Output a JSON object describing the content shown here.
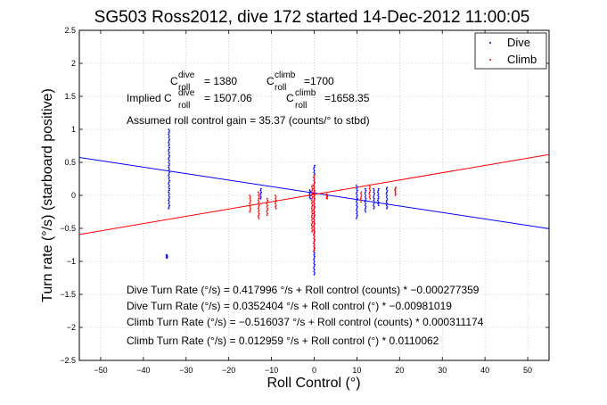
{
  "chart_data": {
    "type": "scatter",
    "title": "SG503 Ross2012, dive 172 started 14-Dec-2012 11:00:05",
    "xlabel": "Roll Control (°)",
    "ylabel": "Turn rate (°/s) (starboard positive)",
    "xlim": [
      -55,
      55
    ],
    "ylim": [
      -2.5,
      2.5
    ],
    "xticks": [
      "−50",
      "−40",
      "−30",
      "−20",
      "−10",
      "0",
      "10",
      "20",
      "30",
      "40",
      "50"
    ],
    "xtick_values": [
      -50,
      -40,
      -30,
      -20,
      -10,
      0,
      10,
      20,
      30,
      40,
      50
    ],
    "yticks": [
      "2.5",
      "2",
      "1.5",
      "1",
      "0.5",
      "0",
      "−0.5",
      "−1",
      "−1.5",
      "−2",
      "−2.5"
    ],
    "ytick_values": [
      2.5,
      2,
      1.5,
      1,
      0.5,
      0,
      -0.5,
      -1,
      -1.5,
      -2,
      -2.5
    ],
    "grid": true,
    "legend_position": "top-right",
    "series": [
      {
        "name": "Dive",
        "color": "#0000ff",
        "marker": "dot",
        "clusters": [
          {
            "x": -34,
            "y_min": -0.2,
            "y_max": 1.0
          },
          {
            "x": -34.5,
            "y_min": -0.95,
            "y_max": -0.9
          },
          {
            "x": -12.5,
            "y_min": -0.05,
            "y_max": 0.1
          },
          {
            "x": -1,
            "y_min": -0.05,
            "y_max": 0.08
          },
          {
            "x": 0,
            "y_min": -1.2,
            "y_max": 0.45
          },
          {
            "x": 10,
            "y_min": -0.35,
            "y_max": 0.15
          },
          {
            "x": 12,
            "y_min": -0.25,
            "y_max": 0.1
          },
          {
            "x": 14,
            "y_min": -0.2,
            "y_max": 0.1
          },
          {
            "x": 15,
            "y_min": -0.15,
            "y_max": 0.1
          },
          {
            "x": 17,
            "y_min": -0.2,
            "y_max": 0.12
          }
        ]
      },
      {
        "name": "Climb",
        "color": "#ff0000",
        "marker": "dot",
        "clusters": [
          {
            "x": -15,
            "y_min": -0.25,
            "y_max": 0.0
          },
          {
            "x": -13,
            "y_min": -0.35,
            "y_max": 0.05
          },
          {
            "x": -11,
            "y_min": -0.3,
            "y_max": -0.05
          },
          {
            "x": -9,
            "y_min": -0.2,
            "y_max": 0.0
          },
          {
            "x": -0.5,
            "y_min": -0.55,
            "y_max": 0.15
          },
          {
            "x": 0,
            "y_min": -0.85,
            "y_max": 0.3
          },
          {
            "x": 3,
            "y_min": -0.05,
            "y_max": 0.02
          },
          {
            "x": 11,
            "y_min": -0.1,
            "y_max": 0.05
          },
          {
            "x": 13,
            "y_min": -0.05,
            "y_max": 0.15
          },
          {
            "x": 19,
            "y_min": 0.0,
            "y_max": 0.12
          }
        ]
      }
    ],
    "fit_lines": [
      {
        "series": "Dive",
        "color": "#0000ff",
        "slope": -0.00981019,
        "intercept": 0.0352404
      },
      {
        "series": "Climb",
        "color": "#ff0000",
        "slope": 0.0110062,
        "intercept": 0.012959
      }
    ],
    "annotations": {
      "c_dive_prefix": "C",
      "c_dive_sup": "dive",
      "c_dive_sub": "roll",
      "c_dive_value": "= 1380",
      "c_climb_prefix": "C",
      "c_climb_sup": "climb",
      "c_climb_sub": "roll",
      "c_climb_value": "=1700",
      "implied_label": "Implied C",
      "implied_dive_sup": "dive",
      "implied_dive_sub": "roll",
      "implied_dive_value": "= 1507.06",
      "implied_climb_prefix": "C",
      "implied_climb_sup": "climb",
      "implied_climb_sub": "roll",
      "implied_climb_value": "=1658.35",
      "gain": "Assumed roll control gain = 35.37 (counts/° to stbd)",
      "eq1": "Dive Turn Rate (°/s) = 0.417996 °/s + Roll control (counts) * −0.000277359",
      "eq2": "Dive Turn Rate (°/s) = 0.0352404 °/s + Roll control (°) * −0.00981019",
      "eq3": "Climb Turn Rate (°/s) = −0.516037 °/s + Roll control (counts) * 0.000311174",
      "eq4": "Climb Turn Rate (°/s) = 0.012959 °/s + Roll control (°) * 0.0110062"
    }
  }
}
